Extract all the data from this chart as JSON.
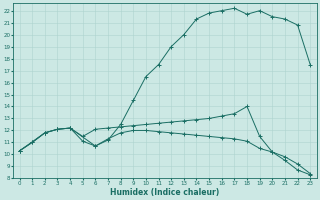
{
  "xlabel": "Humidex (Indice chaleur)",
  "bg_color": "#cce8e4",
  "line_color": "#1a6e64",
  "grid_color": "#aed4cf",
  "xlim": [
    -0.5,
    23.5
  ],
  "ylim": [
    8,
    22.6
  ],
  "yticks": [
    8,
    9,
    10,
    11,
    12,
    13,
    14,
    15,
    16,
    17,
    18,
    19,
    20,
    21,
    22
  ],
  "xticks": [
    0,
    1,
    2,
    3,
    4,
    5,
    6,
    7,
    8,
    9,
    10,
    11,
    12,
    13,
    14,
    15,
    16,
    17,
    18,
    19,
    20,
    21,
    22,
    23
  ],
  "line1_x": [
    0,
    1,
    2,
    3,
    4,
    5,
    6,
    7,
    8,
    9,
    10,
    11,
    12,
    13,
    14,
    15,
    16,
    17,
    18,
    19,
    20,
    21,
    22,
    23
  ],
  "line1_y": [
    10.3,
    11.0,
    11.8,
    12.1,
    12.2,
    11.1,
    10.7,
    11.2,
    12.5,
    14.5,
    16.5,
    17.5,
    19.0,
    20.0,
    21.3,
    21.8,
    22.0,
    22.2,
    21.7,
    22.0,
    21.5,
    21.3,
    20.8,
    17.5
  ],
  "line2_x": [
    0,
    1,
    2,
    3,
    4,
    5,
    6,
    7,
    8,
    9,
    10,
    11,
    12,
    13,
    14,
    15,
    16,
    17,
    18,
    19,
    20,
    21,
    22,
    23
  ],
  "line2_y": [
    10.3,
    11.0,
    11.8,
    12.1,
    12.2,
    11.5,
    12.1,
    12.2,
    12.3,
    12.4,
    12.5,
    12.6,
    12.7,
    12.8,
    12.9,
    13.0,
    13.2,
    13.4,
    14.0,
    11.5,
    10.2,
    9.5,
    8.7,
    8.3
  ],
  "line3_x": [
    0,
    2,
    3,
    4,
    6,
    7,
    8,
    9,
    10,
    11,
    12,
    13,
    14,
    15,
    16,
    17,
    18,
    19,
    20,
    21,
    22,
    23
  ],
  "line3_y": [
    10.3,
    11.8,
    12.1,
    12.2,
    10.7,
    11.3,
    11.8,
    12.0,
    12.0,
    11.9,
    11.8,
    11.7,
    11.6,
    11.5,
    11.4,
    11.3,
    11.1,
    10.5,
    10.2,
    9.8,
    9.2,
    8.4
  ]
}
